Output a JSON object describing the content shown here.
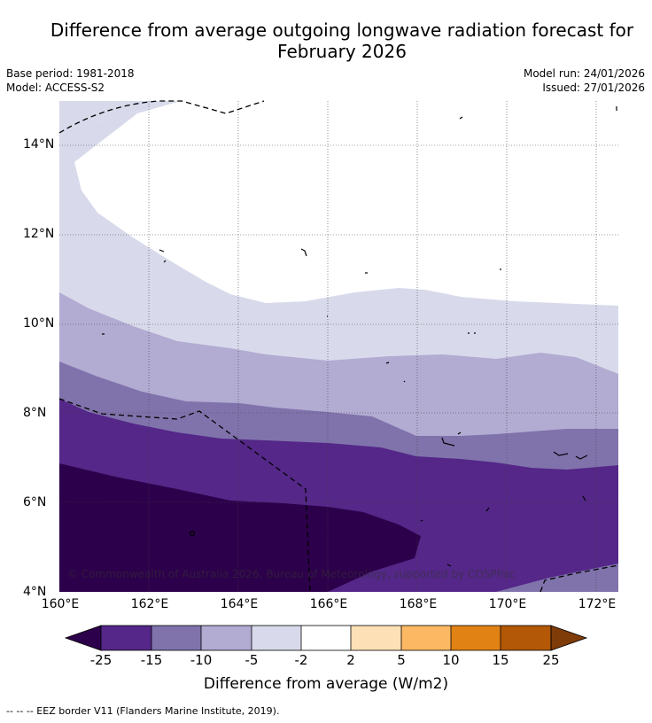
{
  "header": {
    "title_line1": "Difference from average outgoing longwave radiation forecast for",
    "title_line2": "February 2026",
    "base_period": "Base period: 1981-2018",
    "model": "Model: ACCESS-S2",
    "model_run": "Model run: 24/01/2026",
    "issued": "Issued: 27/01/2026"
  },
  "map": {
    "copyright": "© Commonwealth of Australia 2026, Bureau of Meteorology, supported by COSPPac",
    "lat_labels": [
      "14°N",
      "12°N",
      "10°N",
      "8°N",
      "6°N",
      "4°N"
    ],
    "lon_labels": [
      "160°E",
      "162°E",
      "164°E",
      "166°E",
      "168°E",
      "170°E",
      "172°E"
    ],
    "lat_range": [
      4,
      15
    ],
    "lon_range": [
      160,
      172.5
    ]
  },
  "colorbar": {
    "title": "Difference from average (W/m2)",
    "tick_labels": [
      "-25",
      "-15",
      "-10",
      "-5",
      "-2",
      "2",
      "5",
      "10",
      "15",
      "25"
    ],
    "colors": [
      "#2d004b",
      "#542788",
      "#8073ac",
      "#b2abd2",
      "#d8daeb",
      "#ffffff",
      "#fee0b6",
      "#fdb863",
      "#e08214",
      "#b35806",
      "#7f3b08"
    ]
  },
  "footer": {
    "legend_text": "-- -- -- EEZ border V11 (Flanders Marine Institute, 2019)."
  }
}
